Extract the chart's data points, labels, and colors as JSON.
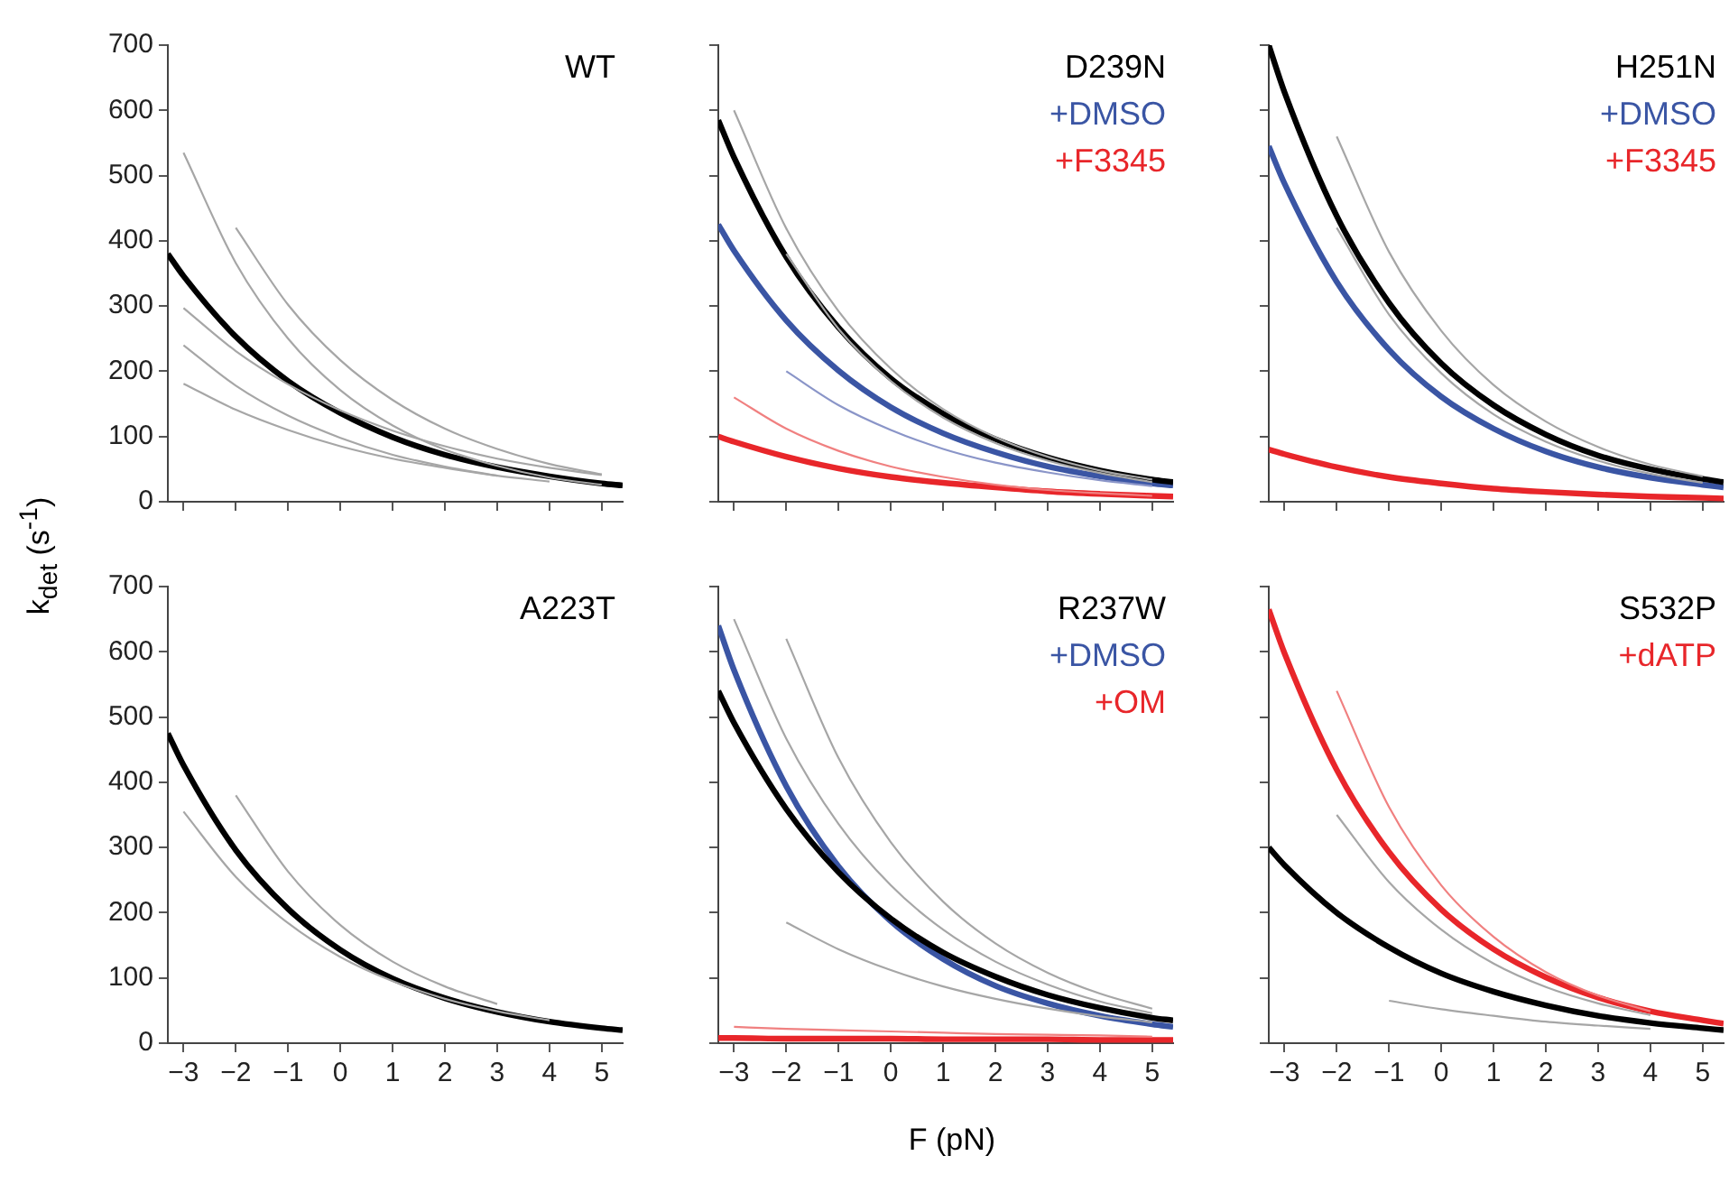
{
  "chart_data": [
    {
      "type": "line",
      "title": "WT",
      "ylabel": "k$_{det}$ (s$^{-1}$)",
      "x": [
        -3.3,
        -3,
        -2,
        -1,
        0,
        1,
        2,
        3,
        4,
        5,
        5.4
      ],
      "xlim": [
        -3.3,
        5.4
      ],
      "ylim": [
        0,
        700
      ],
      "xticks": [
        -3,
        -2,
        -1,
        0,
        1,
        2,
        3,
        4,
        5
      ],
      "yticks": [
        0,
        100,
        200,
        300,
        400,
        500,
        600,
        700
      ],
      "grid": false,
      "legend": false,
      "marker": "none",
      "tick_labels": "y",
      "series": [
        {
          "color": "#a6a6a6",
          "values": [
            null,
            535,
            366,
            250,
            171,
            117,
            80,
            55,
            37,
            26,
            null
          ]
        },
        {
          "color": "#a6a6a6",
          "values": [
            null,
            181,
            141,
            110,
            85,
            66,
            52,
            40,
            31,
            null,
            null
          ]
        },
        {
          "color": "#a6a6a6",
          "values": [
            null,
            null,
            420,
            302,
            217,
            156,
            112,
            81,
            58,
            42,
            null
          ]
        },
        {
          "color": "#a6a6a6",
          "values": [
            null,
            297,
            231,
            180,
            140,
            109,
            85,
            66,
            52,
            41,
            null
          ]
        },
        {
          "color": "#a6a6a6",
          "values": [
            null,
            240,
            178,
            132,
            98,
            72,
            54,
            40,
            null,
            null,
            null
          ]
        },
        {
          "color": "#000000",
          "values": [
            380,
            346,
            253,
            185,
            136,
            99,
            72,
            53,
            39,
            28,
            25
          ]
        }
      ]
    },
    {
      "type": "line",
      "title": "D239N",
      "x": [
        -3.3,
        -3,
        -2,
        -1,
        0,
        1,
        2,
        3,
        4,
        5,
        5.4
      ],
      "xlim": [
        -3.3,
        5.4
      ],
      "ylim": [
        0,
        700
      ],
      "xticks": [
        -3,
        -2,
        -1,
        0,
        1,
        2,
        3,
        4,
        5
      ],
      "yticks": [
        0,
        100,
        200,
        300,
        400,
        500,
        600,
        700
      ],
      "grid": false,
      "legend": false,
      "marker": "none",
      "tick_labels": false,
      "series": [
        {
          "color": "#a6a6a6",
          "values": [
            null,
            600,
            419,
            292,
            204,
            142,
            99,
            69,
            48,
            34,
            null
          ]
        },
        {
          "color": "#a6a6a6",
          "values": [
            null,
            null,
            380,
            265,
            185,
            129,
            90,
            63,
            44,
            30,
            null
          ]
        },
        {
          "color": "#8a95c8",
          "values": [
            null,
            null,
            200,
            148,
            110,
            81,
            60,
            45,
            33,
            24,
            null
          ]
        },
        {
          "color": "#f08080",
          "values": [
            null,
            160,
            112,
            78,
            54,
            38,
            26,
            18,
            13,
            9,
            null
          ]
        },
        {
          "color": "#000000",
          "values": [
            585,
            528,
            375,
            267,
            189,
            135,
            96,
            68,
            48,
            34,
            30
          ]
        },
        {
          "name": "+DMSO",
          "color": "#3a55a4",
          "values": [
            425,
            385,
            278,
            201,
            145,
            105,
            76,
            54,
            39,
            28,
            25
          ]
        },
        {
          "name": "+F3345",
          "color": "#e8262a",
          "values": [
            100,
            92,
            69,
            51,
            38,
            29,
            22,
            16,
            12,
            9,
            8
          ]
        }
      ]
    },
    {
      "type": "line",
      "title": "H251N",
      "x": [
        -3.3,
        -3,
        -2,
        -1,
        0,
        1,
        2,
        3,
        4,
        5,
        5.4
      ],
      "xlim": [
        -3.3,
        5.4
      ],
      "ylim": [
        0,
        700
      ],
      "xticks": [
        -3,
        -2,
        -1,
        0,
        1,
        2,
        3,
        4,
        5
      ],
      "yticks": [
        0,
        100,
        200,
        300,
        400,
        500,
        600,
        700
      ],
      "grid": false,
      "legend": false,
      "marker": "none",
      "tick_labels": false,
      "series": [
        {
          "color": "#a6a6a6",
          "values": [
            null,
            null,
            560,
            383,
            262,
            179,
            123,
            84,
            57,
            39,
            null
          ]
        },
        {
          "color": "#a6a6a6",
          "values": [
            null,
            null,
            420,
            287,
            197,
            134,
            92,
            63,
            43,
            29,
            null
          ]
        },
        {
          "color": "#000000",
          "values": [
            700,
            628,
            438,
            305,
            212,
            148,
            103,
            71,
            50,
            35,
            30
          ]
        },
        {
          "name": "+DMSO",
          "color": "#3a55a4",
          "values": [
            545,
            488,
            337,
            233,
            161,
            112,
            77,
            53,
            37,
            26,
            22
          ]
        },
        {
          "name": "+F3345",
          "color": "#e8262a",
          "values": [
            80,
            73,
            53,
            38,
            28,
            20,
            15,
            11,
            8,
            6,
            5
          ]
        }
      ]
    },
    {
      "type": "line",
      "title": "A223T",
      "x": [
        -3.3,
        -3,
        -2,
        -1,
        0,
        1,
        2,
        3,
        4,
        5,
        5.4
      ],
      "xlim": [
        -3.3,
        5.4
      ],
      "ylim": [
        0,
        700
      ],
      "xticks": [
        -3,
        -2,
        -1,
        0,
        1,
        2,
        3,
        4,
        5
      ],
      "yticks": [
        0,
        100,
        200,
        300,
        400,
        500,
        600,
        700
      ],
      "grid": false,
      "legend": false,
      "marker": "none",
      "series": [
        {
          "color": "#a6a6a6",
          "values": [
            null,
            355,
            255,
            184,
            132,
            95,
            68,
            49,
            35,
            null,
            null
          ]
        },
        {
          "color": "#a6a6a6",
          "values": [
            null,
            null,
            380,
            263,
            181,
            125,
            87,
            60,
            null,
            null,
            null
          ]
        },
        {
          "color": "#000000",
          "values": [
            475,
            426,
            296,
            206,
            143,
            99,
            69,
            48,
            33,
            23,
            20
          ]
        }
      ]
    },
    {
      "type": "line",
      "title": "R237W",
      "xlabel": "F (pN)",
      "x": [
        -3.3,
        -3,
        -2,
        -1,
        0,
        1,
        2,
        3,
        4,
        5,
        5.4
      ],
      "xlim": [
        -3.3,
        5.4
      ],
      "ylim": [
        0,
        700
      ],
      "xticks": [
        -3,
        -2,
        -1,
        0,
        1,
        2,
        3,
        4,
        5
      ],
      "yticks": [
        0,
        100,
        200,
        300,
        400,
        500,
        600,
        700
      ],
      "grid": false,
      "legend": false,
      "marker": "none",
      "tick_labels": "x",
      "series": [
        {
          "color": "#a6a6a6",
          "values": [
            null,
            650,
            467,
            336,
            242,
            174,
            125,
            90,
            64,
            46,
            null
          ]
        },
        {
          "color": "#a6a6a6",
          "values": [
            null,
            null,
            620,
            437,
            308,
            217,
            153,
            108,
            76,
            53,
            null
          ]
        },
        {
          "color": "#a6a6a6",
          "values": [
            null,
            null,
            185,
            144,
            112,
            87,
            68,
            53,
            41,
            32,
            null
          ]
        },
        {
          "color": "#f08080",
          "values": [
            null,
            25,
            22,
            20,
            18,
            16,
            14,
            13,
            12,
            10,
            null
          ]
        },
        {
          "color": "#000000",
          "values": [
            540,
            491,
            359,
            262,
            191,
            139,
            102,
            74,
            54,
            39,
            35
          ]
        },
        {
          "name": "+DMSO",
          "color": "#3a55a4",
          "values": [
            640,
            572,
            394,
            271,
            187,
            129,
            88,
            61,
            42,
            29,
            25
          ]
        },
        {
          "name": "+OM",
          "color": "#e8262a",
          "values": [
            8,
            8,
            7,
            7,
            7,
            6,
            6,
            6,
            5,
            5,
            5
          ]
        }
      ]
    },
    {
      "type": "line",
      "title": "S532P",
      "x": [
        -3.3,
        -3,
        -2,
        -1,
        0,
        1,
        2,
        3,
        4,
        5,
        5.4
      ],
      "xlim": [
        -3.3,
        5.4
      ],
      "ylim": [
        0,
        700
      ],
      "xticks": [
        -3,
        -2,
        -1,
        0,
        1,
        2,
        3,
        4,
        5
      ],
      "yticks": [
        0,
        100,
        200,
        300,
        400,
        500,
        600,
        700
      ],
      "grid": false,
      "legend": false,
      "marker": "none",
      "tick_labels": "x",
      "series": [
        {
          "color": "#f08080",
          "values": [
            null,
            null,
            540,
            362,
            242,
            163,
            109,
            73,
            49,
            null,
            null
          ]
        },
        {
          "color": "#a6a6a6",
          "values": [
            null,
            null,
            350,
            247,
            174,
            122,
            86,
            61,
            43,
            null,
            null
          ]
        },
        {
          "color": "#a6a6a6",
          "values": [
            null,
            null,
            null,
            65,
            52,
            42,
            33,
            27,
            22,
            null,
            null
          ]
        },
        {
          "color": "#000000",
          "values": [
            300,
            273,
            200,
            147,
            107,
            79,
            58,
            42,
            31,
            23,
            20
          ]
        },
        {
          "name": "+dATP",
          "color": "#e8262a",
          "values": [
            665,
            598,
            419,
            293,
            205,
            144,
            101,
            70,
            49,
            35,
            30
          ]
        }
      ]
    }
  ]
}
